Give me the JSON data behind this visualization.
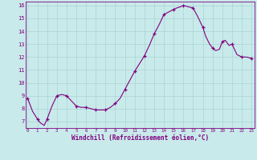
{
  "x": [
    0,
    0.5,
    1,
    1.3,
    1.7,
    2,
    2.5,
    3,
    3.5,
    4,
    4.5,
    5,
    5.5,
    6,
    6.5,
    7,
    7.5,
    8,
    8.5,
    9,
    9.5,
    10,
    10.5,
    11,
    11.5,
    12,
    12.5,
    13,
    13.5,
    14,
    14.5,
    15,
    15.3,
    15.7,
    16,
    16.5,
    17,
    17.5,
    18,
    18.3,
    18.7,
    19,
    19.3,
    19.7,
    20,
    20.3,
    20.5,
    20.7,
    21,
    21.5,
    22,
    22.5,
    23
  ],
  "y": [
    8.8,
    7.8,
    7.2,
    6.9,
    6.7,
    7.2,
    8.2,
    9.0,
    9.1,
    9.0,
    8.6,
    8.2,
    8.1,
    8.1,
    8.0,
    7.9,
    7.9,
    7.9,
    8.1,
    8.4,
    8.8,
    9.5,
    10.2,
    10.9,
    11.5,
    12.1,
    12.9,
    13.8,
    14.5,
    15.3,
    15.5,
    15.7,
    15.8,
    15.9,
    16.0,
    15.9,
    15.8,
    15.1,
    14.3,
    13.6,
    13.0,
    12.7,
    12.5,
    12.6,
    13.2,
    13.3,
    13.1,
    12.9,
    13.0,
    12.2,
    12.0,
    12.0,
    11.9
  ],
  "marker_x": [
    0,
    1,
    2,
    3,
    4,
    5,
    6,
    7,
    8,
    9,
    10,
    11,
    12,
    13,
    14,
    15,
    16,
    17,
    18,
    19,
    20,
    21,
    22,
    23
  ],
  "marker_y": [
    8.8,
    7.2,
    7.2,
    9.0,
    9.0,
    8.2,
    8.1,
    7.9,
    7.9,
    8.4,
    9.5,
    10.9,
    12.1,
    13.8,
    15.3,
    15.7,
    16.0,
    15.8,
    14.3,
    12.7,
    13.2,
    13.0,
    12.0,
    11.9
  ],
  "line_color": "#800080",
  "marker_color": "#800080",
  "bg_color": "#c8eaea",
  "grid_color": "#aad4d4",
  "axis_color": "#800080",
  "xlabel": "Windchill (Refroidissement éolien,°C)",
  "ylim": [
    6.5,
    16.3
  ],
  "xlim": [
    -0.2,
    23.3
  ],
  "yticks": [
    7,
    8,
    9,
    10,
    11,
    12,
    13,
    14,
    15,
    16
  ],
  "xticks": [
    0,
    1,
    2,
    3,
    4,
    5,
    6,
    7,
    8,
    9,
    10,
    11,
    12,
    13,
    14,
    15,
    16,
    17,
    18,
    19,
    20,
    21,
    22,
    23
  ]
}
